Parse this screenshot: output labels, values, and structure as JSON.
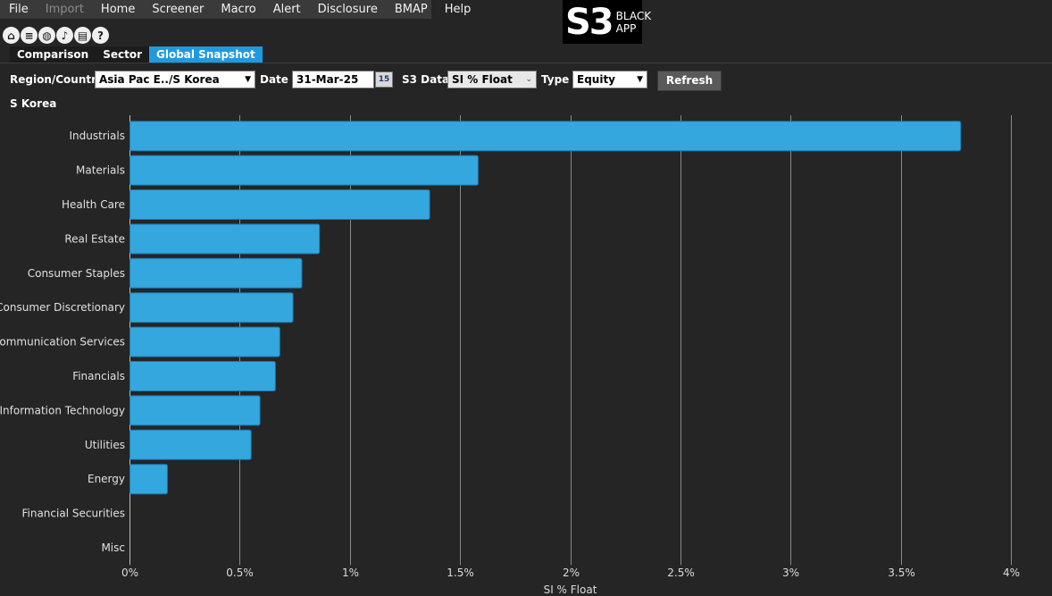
{
  "menu": {
    "items": [
      {
        "label": "File",
        "enabled": true
      },
      {
        "label": "Import",
        "enabled": false
      },
      {
        "label": "Home",
        "enabled": true
      },
      {
        "label": "Screener",
        "enabled": true
      },
      {
        "label": "Macro",
        "enabled": true
      },
      {
        "label": "Alert",
        "enabled": true
      },
      {
        "label": "Disclosure",
        "enabled": true
      },
      {
        "label": "BMAP",
        "enabled": true
      },
      {
        "label": "Help",
        "enabled": true
      }
    ]
  },
  "logo": {
    "mark": "S3",
    "text": "BLACK APP"
  },
  "toolbar": {
    "icons": [
      "home-icon",
      "list-icon",
      "globe-icon",
      "bell-icon",
      "report-icon",
      "help-icon"
    ]
  },
  "tabs": [
    {
      "label": "Comparison",
      "active": false
    },
    {
      "label": "Sector",
      "active": false
    },
    {
      "label": "Global Snapshot",
      "active": true
    }
  ],
  "filters": {
    "region_label": "Region/Country",
    "region_value": "Asia Pac E../S Korea",
    "date_label": "Date",
    "date_value": "31-Mar-25",
    "calendar_day": "15",
    "s3data_label": "S3 Data",
    "s3data_value": "SI % Float",
    "type_label": "Type",
    "type_value": "Equity",
    "refresh_label": "Refresh"
  },
  "region_title": "S Korea",
  "colors": {
    "bar": "#35a7df",
    "bar_stroke": "#1b78b0",
    "accent": "#1e9be0",
    "grid": "#8a8a8a"
  },
  "chart_data": {
    "type": "bar",
    "orientation": "horizontal",
    "categories": [
      "Industrials",
      "Materials",
      "Health Care",
      "Real Estate",
      "Consumer Staples",
      "Consumer Discretionary",
      "Communication Services",
      "Financials",
      "Information Technology",
      "Utilities",
      "Energy",
      "Financial Securities",
      "Misc"
    ],
    "values": [
      3.77,
      1.58,
      1.36,
      0.86,
      0.78,
      0.74,
      0.68,
      0.66,
      0.59,
      0.55,
      0.17,
      0,
      0
    ],
    "xlabel": "SI % Float",
    "xlim": [
      0,
      4
    ],
    "xticks": [
      0,
      0.5,
      1,
      1.5,
      2,
      2.5,
      3,
      3.5,
      4
    ],
    "xtick_labels": [
      "0%",
      "0.5%",
      "1%",
      "1.5%",
      "2%",
      "2.5%",
      "3%",
      "3.5%",
      "4%"
    ],
    "grid": true
  }
}
